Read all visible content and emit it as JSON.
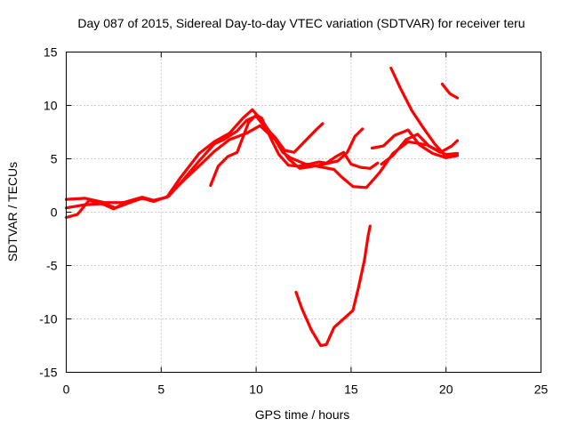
{
  "chart_data": {
    "type": "line",
    "title": "Day 087 of 2015, Sidereal Day-to-day VTEC variation (SDTVAR) for receiver teru",
    "xlabel": "GPS time / hours",
    "ylabel": "SDTVAR / TECUs",
    "xlim": [
      0,
      25
    ],
    "ylim": [
      -15,
      15
    ],
    "xticks": [
      "0",
      "5",
      "10",
      "15",
      "20",
      "25"
    ],
    "yticks": [
      "-15",
      "-10",
      "-5",
      "0",
      "5",
      "10",
      "15"
    ],
    "grid": true,
    "color": "#ff0000",
    "series": [
      {
        "x": [
          0,
          1,
          2,
          3,
          4,
          4.6,
          5.3,
          6,
          7,
          7.8,
          8.6,
          9.3,
          9.8,
          10.3,
          11,
          11.4,
          11.8,
          12.6,
          13.5,
          14.1,
          14.5,
          15.1,
          15.8,
          16.5,
          17.2,
          18,
          19,
          20.2
        ],
        "y": [
          1.2,
          1.3,
          0.9,
          0.9,
          1.3,
          1.1,
          1.4,
          3.2,
          5.5,
          6.6,
          7.4,
          8.8,
          9.6,
          8.6,
          6.8,
          5.6,
          5.1,
          4.5,
          4.2,
          4.0,
          3.3,
          2.4,
          2.3,
          3.7,
          5.5,
          6.6,
          6.3,
          5.2
        ]
      },
      {
        "x": [
          0,
          1,
          2,
          2.6,
          3.2,
          4,
          4.6,
          5.4,
          6,
          7,
          7.8,
          8.3,
          9,
          9.5,
          10,
          10.4,
          11,
          11.5,
          12,
          12.6,
          13.2,
          13.5
        ],
        "y": [
          0.4,
          0.7,
          0.8,
          0.4,
          0.8,
          1.3,
          1.0,
          1.5,
          2.7,
          4.8,
          6.4,
          6.8,
          7.6,
          8.6,
          9.0,
          8.1,
          7.0,
          5.8,
          5.6,
          6.7,
          7.8,
          8.3
        ]
      },
      {
        "x": [
          0,
          0.6,
          1.2,
          2,
          2.5,
          3.2,
          4,
          4.6,
          5.3,
          6.2,
          7.1,
          7.8,
          8.6,
          9.5,
          10.2,
          11,
          11.7,
          12.3,
          13,
          13.6,
          14.3,
          14.8,
          15.2,
          15.6
        ],
        "y": [
          -0.5,
          -0.2,
          1.1,
          0.7,
          0.3,
          1.0,
          1.4,
          1.1,
          1.4,
          3.0,
          4.5,
          5.7,
          6.8,
          7.4,
          8.1,
          6.8,
          5.0,
          4.1,
          4.3,
          4.5,
          4.8,
          5.6,
          7.1,
          7.8
        ]
      },
      {
        "x": [
          7.6,
          8,
          8.5,
          9,
          9.6,
          10,
          10.3,
          10.8,
          11.2,
          11.7,
          12.2,
          12.8,
          13.3,
          13.7,
          14.2,
          14.6,
          15,
          15.5,
          16,
          16.4
        ],
        "y": [
          2.5,
          4.3,
          5.2,
          5.6,
          8.4,
          9.1,
          8.8,
          6.8,
          5.4,
          4.4,
          4.3,
          4.5,
          4.7,
          4.6,
          5.2,
          5.6,
          4.5,
          4.2,
          4.1,
          4.6
        ]
      },
      {
        "x": [
          16.1,
          16.7,
          17.3,
          18,
          18.6,
          19.3,
          20,
          20.6
        ],
        "y": [
          6.0,
          6.2,
          7.2,
          7.7,
          6.3,
          5.5,
          5.1,
          5.3
        ]
      },
      {
        "x": [
          17.1,
          17.6,
          18.2,
          18.8,
          19.4,
          19.9,
          20.6
        ],
        "y": [
          13.5,
          11.6,
          9.5,
          7.9,
          6.4,
          5.4,
          5.5
        ]
      },
      {
        "x": [
          16.6,
          17.2,
          17.9,
          18.5,
          19.1,
          19.7,
          20.3,
          20.6
        ],
        "y": [
          4.5,
          5.3,
          6.8,
          7.3,
          6.2,
          5.6,
          6.2,
          6.7
        ]
      },
      {
        "x": [
          19.8,
          20.2,
          20.6
        ],
        "y": [
          12.0,
          11.1,
          10.7
        ]
      },
      {
        "x": [
          12.1,
          12.4,
          12.9,
          13.4,
          13.7,
          14.1,
          14.6,
          15.1,
          15.4,
          15.7,
          15.9,
          16.0
        ],
        "y": [
          -7.5,
          -9.0,
          -11.0,
          -12.5,
          -12.4,
          -10.8,
          -10.0,
          -9.2,
          -7.0,
          -4.5,
          -2.2,
          -1.3
        ]
      }
    ]
  }
}
